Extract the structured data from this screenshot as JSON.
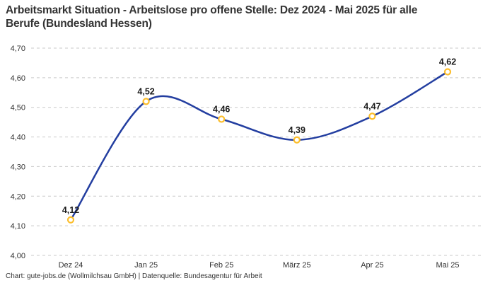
{
  "header": {
    "title_line1": "Arbeitsmarkt Situation - Arbeitslose pro offene Stelle: Dez 2024 - Mai 2025 für alle",
    "title_line2": "Berufe (Bundesland Hessen)"
  },
  "footer": {
    "credit": "Chart: gute-jobs.de (Wollmilchsau GmbH) | Datenquelle: Bundesagentur für Arbeit"
  },
  "chart_data": {
    "type": "line",
    "title": "Arbeitsmarkt Situation - Arbeitslose pro offene Stelle: Dez 2024 - Mai 2025 für alle Berufe (Bundesland Hessen)",
    "categories": [
      "Dez 24",
      "Jan 25",
      "Feb 25",
      "März 25",
      "Apr 25",
      "Mai 25"
    ],
    "values": [
      4.12,
      4.52,
      4.46,
      4.39,
      4.47,
      4.62
    ],
    "value_labels": [
      "4,12",
      "4,52",
      "4,46",
      "4,39",
      "4,47",
      "4,62"
    ],
    "xlabel": "",
    "ylabel": "",
    "ylim": [
      4.0,
      4.7
    ],
    "ytick_values": [
      4.0,
      4.1,
      4.2,
      4.3,
      4.4,
      4.5,
      4.6,
      4.7
    ],
    "ytick_labels": [
      "4,00",
      "4,10",
      "4,20",
      "4,30",
      "4,40",
      "4,50",
      "4,60",
      "4,70"
    ],
    "grid": "horizontal-dashed",
    "legend": "none",
    "curve": "smooth",
    "line_color": "#233ea0",
    "marker_ring_color": "#fcbe2c",
    "marker_fill_color": "#ffffff",
    "grid_color": "#c9c9c9",
    "axis_text_color": "#333333",
    "data_label_color": "#1a1a1a"
  }
}
